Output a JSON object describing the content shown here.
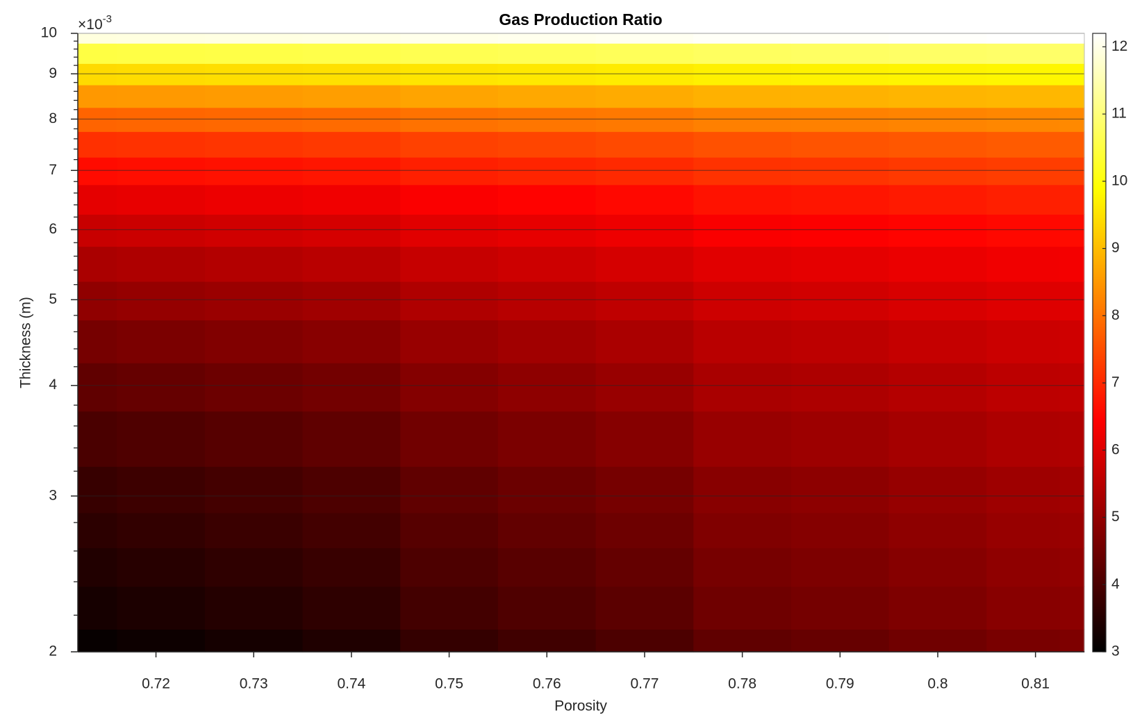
{
  "chart_data": {
    "type": "contourf",
    "title": "Gas Production Ratio",
    "x_label": "Porosity",
    "y_label": "Thickness (m)",
    "y_exponent": {
      "base": "×10",
      "power": "-3"
    },
    "colormap": "hot",
    "y_scale": "log",
    "grid": true,
    "xlim": [
      0.712,
      0.815
    ],
    "xticks": [
      0.72,
      0.73,
      0.74,
      0.75,
      0.76,
      0.77,
      0.78,
      0.79,
      0.8,
      0.81
    ],
    "ylim": [
      0.002,
      0.01
    ],
    "yticks": [
      {
        "value": 0.002,
        "label": "2"
      },
      {
        "value": 0.003,
        "label": "3"
      },
      {
        "value": 0.004,
        "label": "4"
      },
      {
        "value": 0.005,
        "label": "5"
      },
      {
        "value": 0.006,
        "label": "6"
      },
      {
        "value": 0.007,
        "label": "7"
      },
      {
        "value": 0.008,
        "label": "8"
      },
      {
        "value": 0.009,
        "label": "9"
      },
      {
        "value": 0.01,
        "label": "10"
      }
    ],
    "yminorticks": [
      0.0022,
      0.0024,
      0.0026,
      0.0028,
      0.0032,
      0.0034,
      0.0036,
      0.0038,
      0.0042,
      0.0044,
      0.0046,
      0.0048,
      0.0052,
      0.0054,
      0.0056,
      0.0058,
      0.0062,
      0.0064,
      0.0066,
      0.0068,
      0.0072,
      0.0074,
      0.0076,
      0.0078,
      0.0082,
      0.0084,
      0.0086,
      0.0088,
      0.0092,
      0.0094,
      0.0096,
      0.0098
    ],
    "colorbar": {
      "lim": [
        3,
        12.2
      ],
      "ticks": [
        3,
        4,
        5,
        6,
        7,
        8,
        9,
        10,
        11,
        12
      ]
    },
    "x": [
      0.712,
      0.72,
      0.73,
      0.74,
      0.75,
      0.76,
      0.77,
      0.78,
      0.79,
      0.8,
      0.81,
      0.815
    ],
    "y": [
      0.002,
      0.00225,
      0.0025,
      0.00275,
      0.003,
      0.0035,
      0.004,
      0.0045,
      0.005,
      0.0055,
      0.006,
      0.0065,
      0.007,
      0.0075,
      0.008,
      0.0085,
      0.009,
      0.0095,
      0.01
    ],
    "z": [
      [
        3.1,
        3.18,
        3.29,
        3.42,
        3.71,
        3.87,
        4.03,
        4.3,
        4.38,
        4.51,
        4.64,
        4.7
      ],
      [
        3.3,
        3.38,
        3.49,
        3.62,
        3.91,
        4.07,
        4.23,
        4.5,
        4.58,
        4.71,
        4.84,
        4.9
      ],
      [
        3.45,
        3.53,
        3.64,
        3.76,
        4.04,
        4.19,
        4.35,
        4.61,
        4.69,
        4.81,
        4.94,
        5.0
      ],
      [
        3.6,
        3.68,
        3.78,
        3.9,
        4.17,
        4.32,
        4.47,
        4.73,
        4.8,
        4.92,
        5.04,
        5.1
      ],
      [
        3.75,
        3.82,
        3.92,
        4.04,
        4.3,
        4.45,
        4.59,
        4.84,
        4.91,
        5.03,
        5.14,
        5.2
      ],
      [
        4.0,
        4.07,
        4.17,
        4.28,
        4.53,
        4.67,
        4.81,
        5.05,
        5.12,
        5.23,
        5.34,
        5.4
      ],
      [
        4.3,
        4.37,
        4.46,
        4.56,
        4.79,
        4.92,
        5.05,
        5.28,
        5.34,
        5.44,
        5.55,
        5.6
      ],
      [
        4.6,
        4.66,
        4.74,
        4.84,
        5.06,
        5.18,
        5.3,
        5.5,
        5.56,
        5.66,
        5.75,
        5.8
      ],
      [
        4.95,
        5.01,
        5.08,
        5.17,
        5.37,
        5.48,
        5.59,
        5.78,
        5.83,
        5.92,
        6.01,
        6.05
      ],
      [
        5.3,
        5.35,
        5.42,
        5.5,
        5.68,
        5.78,
        5.88,
        6.05,
        6.1,
        6.18,
        6.26,
        6.3
      ],
      [
        5.7,
        5.75,
        5.81,
        5.88,
        6.04,
        6.13,
        6.22,
        6.38,
        6.42,
        6.49,
        6.56,
        6.6
      ],
      [
        6.1,
        6.14,
        6.2,
        6.26,
        6.4,
        6.48,
        6.56,
        6.7,
        6.74,
        6.8,
        6.87,
        6.9
      ],
      [
        6.6,
        6.64,
        6.68,
        6.74,
        6.87,
        6.94,
        7.01,
        7.13,
        7.16,
        7.22,
        7.27,
        7.3
      ],
      [
        7.1,
        7.13,
        7.17,
        7.22,
        7.33,
        7.39,
        7.45,
        7.55,
        7.58,
        7.63,
        7.68,
        7.7
      ],
      [
        7.8,
        7.83,
        7.86,
        7.9,
        7.99,
        8.04,
        8.09,
        8.18,
        8.2,
        8.24,
        8.28,
        8.3
      ],
      [
        8.5,
        8.52,
        8.55,
        8.59,
        8.67,
        8.72,
        8.76,
        8.84,
        8.86,
        8.9,
        8.93,
        8.95
      ],
      [
        9.4,
        9.42,
        9.45,
        9.48,
        9.55,
        9.59,
        9.63,
        9.7,
        9.72,
        9.75,
        9.78,
        9.8
      ],
      [
        10.5,
        10.52,
        10.54,
        10.57,
        10.63,
        10.67,
        10.7,
        10.76,
        10.78,
        10.81,
        10.84,
        10.85
      ],
      [
        11.9,
        11.92,
        11.94,
        11.96,
        12.01,
        12.04,
        12.07,
        12.13,
        12.14,
        12.16,
        12.19,
        12.2
      ]
    ]
  }
}
